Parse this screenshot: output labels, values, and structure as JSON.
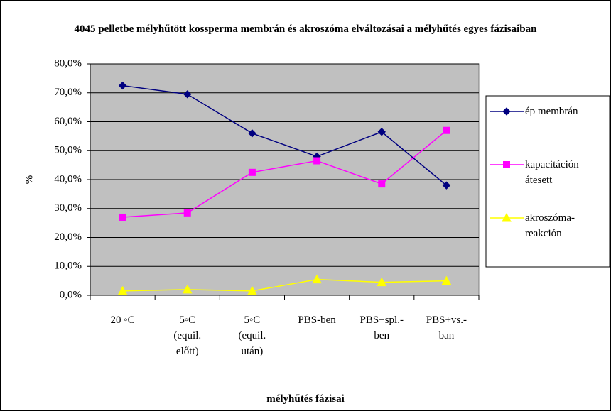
{
  "chart_data": {
    "type": "line",
    "title": "4045 pelletbe mélyhűtött kossperma membrán és akroszóma elváltozásai a mélyhűtés egyes fázisaiban",
    "x_label": "mélyhűtés fázisai",
    "y_label": "%",
    "categories": [
      "20 ◦C",
      "5◦C\n(equil.\nelőtt)",
      "5◦C\n(equil.\nután)",
      "PBS-ben",
      "PBS+spl.-\nben",
      "PBS+vs.-\nban"
    ],
    "series": [
      {
        "name": "ép membrán",
        "color": "#000080",
        "marker": "diamond",
        "values": [
          72.5,
          69.5,
          56,
          48,
          56.5,
          38
        ]
      },
      {
        "name": "kapacitáción átesett",
        "color": "#ff00ff",
        "marker": "square",
        "values": [
          27,
          28.5,
          42.5,
          46.5,
          38.5,
          57
        ]
      },
      {
        "name": "akroszóma-reakción",
        "color": "#ffff00",
        "marker": "triangle",
        "values": [
          1.5,
          2,
          1.5,
          5.5,
          4.5,
          5
        ]
      }
    ],
    "ylim": [
      0,
      80
    ],
    "yticks": [
      {
        "value": 0,
        "label": "0,0%"
      },
      {
        "value": 10,
        "label": "10,0%"
      },
      {
        "value": 20,
        "label": "20,0%"
      },
      {
        "value": 30,
        "label": "30,0%"
      },
      {
        "value": 40,
        "label": "40,0%"
      },
      {
        "value": 50,
        "label": "50,0%"
      },
      {
        "value": 60,
        "label": "60,0%"
      },
      {
        "value": 70,
        "label": "70,0%"
      },
      {
        "value": 80,
        "label": "80,0%"
      }
    ],
    "grid": true,
    "plot_background": "#c0c0c0",
    "legend": "right"
  }
}
